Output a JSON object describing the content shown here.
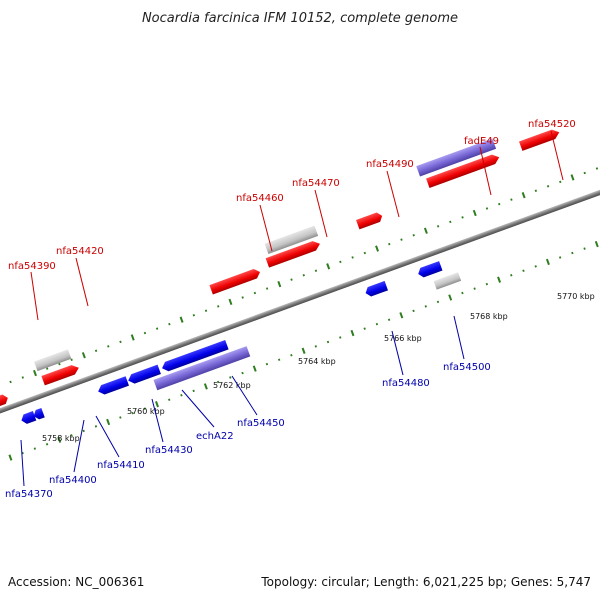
{
  "title": "Nocardia farcinica IFM 10152, complete genome",
  "footer": {
    "accession": "Accession: NC_006361",
    "summary": "Topology: circular; Length: 6,021,225 bp; Genes: 5,747"
  },
  "colors": {
    "forward_label": "#cc0000",
    "reverse_label": "#0000aa",
    "backbone": "#888888",
    "tick": "#2e7d1f"
  },
  "scale_labels": [
    "5758 kbp",
    "5760 kbp",
    "5762 kbp",
    "5764 kbp",
    "5766 kbp",
    "5768 kbp",
    "5770 kbp"
  ],
  "forward_labels": [
    "nfa54390",
    "nfa54420",
    "nfa54460",
    "nfa54470",
    "nfa54490",
    "fadE49",
    "nfa54520"
  ],
  "reverse_labels": [
    "nfa54370",
    "nfa54400",
    "nfa54410",
    "nfa54430",
    "echA22",
    "nfa54450",
    "nfa54480",
    "nfa54500"
  ]
}
